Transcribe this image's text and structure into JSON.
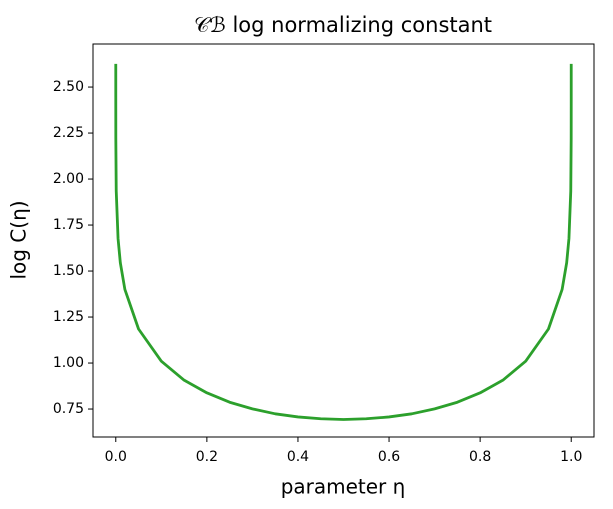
{
  "chart_data": {
    "type": "line",
    "title": "𝒞ℬ log normalizing constant",
    "x_label": "parameter η",
    "y_label": "log C(η)",
    "x": [
      1e-06,
      1e-05,
      0.0001,
      0.001,
      0.005,
      0.01,
      0.02,
      0.05,
      0.1,
      0.15,
      0.2,
      0.25,
      0.3,
      0.35,
      0.4,
      0.45,
      0.5,
      0.55,
      0.6,
      0.65,
      0.7,
      0.75,
      0.8,
      0.85,
      0.9,
      0.95,
      0.98,
      0.99,
      0.995,
      0.999,
      0.9999,
      0.99999,
      0.999999
    ],
    "series": [
      {
        "color": "#2ca02c",
        "values": [
          2.626,
          2.444,
          2.221,
          1.935,
          1.677,
          1.545,
          1.4,
          1.185,
          1.01,
          0.907,
          0.838,
          0.787,
          0.751,
          0.724,
          0.707,
          0.697,
          0.693,
          0.697,
          0.707,
          0.724,
          0.751,
          0.787,
          0.838,
          0.907,
          1.01,
          1.185,
          1.4,
          1.545,
          1.677,
          1.935,
          2.221,
          2.444,
          2.626
        ]
      }
    ],
    "xlim": [
      -0.05,
      1.05
    ],
    "ylim": [
      0.598,
      2.734
    ],
    "xticks": [
      {
        "value": 0,
        "label": "0.0"
      },
      {
        "value": 0.2,
        "label": "0.2"
      },
      {
        "value": 0.4,
        "label": "0.4"
      },
      {
        "value": 0.6,
        "label": "0.6"
      },
      {
        "value": 0.8,
        "label": "0.8"
      },
      {
        "value": 1,
        "label": "1.0"
      }
    ],
    "yticks": [
      {
        "value": 0.75,
        "label": "0.75"
      },
      {
        "value": 1,
        "label": "1.00"
      },
      {
        "value": 1.25,
        "label": "1.25"
      },
      {
        "value": 1.5,
        "label": "1.50"
      },
      {
        "value": 1.75,
        "label": "1.75"
      },
      {
        "value": 2,
        "label": "2.00"
      },
      {
        "value": 2.25,
        "label": "2.25"
      },
      {
        "value": 2.5,
        "label": "2.50"
      }
    ],
    "grid": false
  }
}
